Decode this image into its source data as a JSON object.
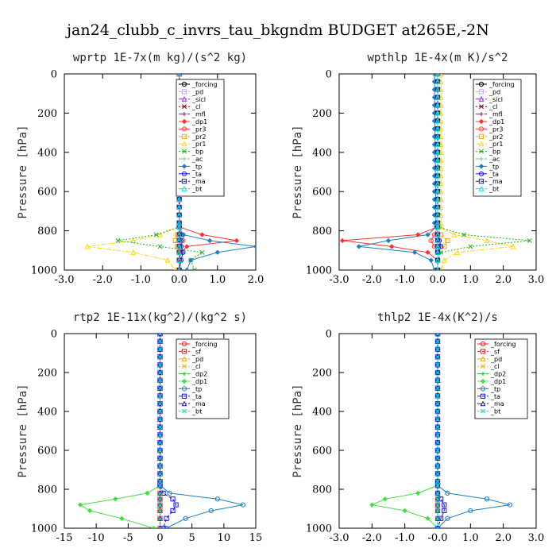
{
  "title": "jan24_clubb_c_invrs_tau_bkgndm  BUDGET at265E,-2N",
  "chart_data": [
    {
      "type": "line",
      "title": "wprtp  1E-7x(m kg)/(s^2 kg)",
      "ylabel": "Pressure [hPa]",
      "xlim": [
        -3.0,
        2.0
      ],
      "ylim": [
        1000,
        0
      ],
      "xticks": [
        "-3.0",
        "-2.0",
        "-1.0",
        "0.0",
        "1.0",
        "2.0"
      ],
      "yticks": [
        "0",
        "200",
        "400",
        "600",
        "800",
        "1000"
      ],
      "legend_position": "top-right",
      "y": [
        0,
        780,
        820,
        850,
        880,
        910,
        950,
        1000
      ],
      "series": [
        {
          "name": "_forcing",
          "color": "#000000",
          "values": [
            0,
            0,
            0,
            0,
            0,
            0,
            0,
            0
          ]
        },
        {
          "name": "_pd",
          "color": "#c8a0ff",
          "values": [
            0,
            0,
            0,
            0,
            0,
            0,
            0,
            0
          ]
        },
        {
          "name": "_sicl",
          "color": "#a020f0",
          "values": [
            0,
            0,
            0,
            0,
            0,
            0,
            0,
            0
          ]
        },
        {
          "name": "_cl",
          "color": "#800000",
          "values": [
            0,
            0,
            0,
            0,
            0,
            0,
            0,
            0
          ]
        },
        {
          "name": "_mfl",
          "color": "#c00060",
          "values": [
            0,
            0,
            0,
            0,
            0,
            0,
            0,
            0
          ]
        },
        {
          "name": "_dp1",
          "color": "#ff3030",
          "values": [
            0,
            0,
            0.6,
            1.5,
            0.2,
            0.05,
            0,
            0
          ]
        },
        {
          "name": "_pr3",
          "color": "#ff4040",
          "values": [
            0,
            0,
            0.1,
            0.1,
            0.05,
            0,
            0,
            0
          ]
        },
        {
          "name": "_pr2",
          "color": "#ffa500",
          "values": [
            0,
            0,
            -0.05,
            -0.1,
            -0.05,
            0,
            0,
            0
          ]
        },
        {
          "name": "_pr1",
          "color": "#ffd700",
          "values": [
            0,
            0,
            -0.5,
            -1.2,
            -2.4,
            -1.2,
            -0.3,
            -0.1
          ]
        },
        {
          "name": "_bp",
          "color": "#20b020",
          "values": [
            0,
            0,
            -0.6,
            -1.6,
            -0.5,
            0.6,
            0.3,
            0.4
          ]
        },
        {
          "name": "_ac",
          "color": "#80c080",
          "values": [
            0,
            0,
            0.05,
            0.1,
            0.05,
            0.1,
            0.05,
            0
          ]
        },
        {
          "name": "_tp",
          "color": "#1e7fc0",
          "values": [
            0,
            0,
            0.1,
            0.8,
            2.0,
            1.0,
            0.3,
            0.2
          ]
        },
        {
          "name": "_ta",
          "color": "#1010ff",
          "values": [
            0,
            0,
            0,
            0.05,
            0.05,
            0.1,
            0.05,
            0
          ]
        },
        {
          "name": "_ma",
          "color": "#202080",
          "values": [
            0,
            0,
            0,
            0,
            0,
            0,
            0,
            0
          ]
        },
        {
          "name": "_bt",
          "color": "#00e0e0",
          "values": [
            0,
            0,
            0,
            0,
            0,
            0,
            0,
            0
          ]
        }
      ]
    },
    {
      "type": "line",
      "title": "wpthlp  1E-4x(m K)/s^2",
      "ylabel": "Pressure [hPa]",
      "xlim": [
        -3.0,
        3.0
      ],
      "ylim": [
        1000,
        0
      ],
      "xticks": [
        "-3.0",
        "-2.0",
        "-1.0",
        "0.0",
        "1.0",
        "2.0",
        "3.0"
      ],
      "yticks": [
        "0",
        "200",
        "400",
        "600",
        "800",
        "1000"
      ],
      "legend_position": "top-right",
      "y": [
        0,
        780,
        820,
        850,
        880,
        910,
        950,
        1000
      ],
      "series": [
        {
          "name": "_forcing",
          "color": "#000000",
          "values": [
            0,
            0,
            0,
            0,
            0,
            0,
            0,
            0
          ]
        },
        {
          "name": "_pd",
          "color": "#c8a0ff",
          "values": [
            0,
            0,
            0,
            0,
            0,
            0,
            0,
            0
          ]
        },
        {
          "name": "_sicl",
          "color": "#a020f0",
          "values": [
            0,
            0,
            0,
            0,
            0,
            0,
            0,
            0
          ]
        },
        {
          "name": "_cl",
          "color": "#800000",
          "values": [
            0,
            0,
            0,
            0,
            0,
            0,
            0,
            0
          ]
        },
        {
          "name": "_mfl",
          "color": "#c00060",
          "values": [
            0,
            0,
            0,
            0,
            0,
            0,
            0,
            0
          ]
        },
        {
          "name": "_dp1",
          "color": "#ff3030",
          "values": [
            0,
            0,
            -0.6,
            -2.9,
            -1.4,
            -0.3,
            0,
            0
          ]
        },
        {
          "name": "_pr3",
          "color": "#ff4040",
          "values": [
            0,
            0,
            -0.1,
            -0.2,
            -0.1,
            0,
            0,
            0
          ]
        },
        {
          "name": "_pr2",
          "color": "#ffa500",
          "values": [
            0,
            0,
            0.1,
            0.3,
            0.2,
            0,
            0,
            0
          ]
        },
        {
          "name": "_pr1",
          "color": "#ffd700",
          "values": [
            0.1,
            0.1,
            0.5,
            1.5,
            2.3,
            0.6,
            0.2,
            0.1
          ]
        },
        {
          "name": "_bp",
          "color": "#20b020",
          "values": [
            0,
            0,
            0.8,
            2.8,
            1.0,
            0.1,
            0,
            0
          ]
        },
        {
          "name": "_ac",
          "color": "#80c080",
          "values": [
            0,
            0,
            0,
            0.05,
            0.05,
            0,
            0,
            0
          ]
        },
        {
          "name": "_tp",
          "color": "#1e7fc0",
          "values": [
            -0.1,
            -0.05,
            -0.3,
            -1.5,
            -2.4,
            -0.7,
            -0.2,
            -0.1
          ]
        },
        {
          "name": "_ta",
          "color": "#1010ff",
          "values": [
            0,
            0,
            0,
            0.05,
            0.1,
            0,
            0,
            0
          ]
        },
        {
          "name": "_ma",
          "color": "#202080",
          "values": [
            0,
            0,
            0,
            0,
            0,
            0,
            0,
            0
          ]
        },
        {
          "name": "_bt",
          "color": "#00e0e0",
          "values": [
            0,
            0,
            0,
            0,
            0,
            0,
            0,
            0
          ]
        }
      ]
    },
    {
      "type": "line",
      "title": "rtp2  1E-11x(kg^2)/(kg^2 s)",
      "ylabel": "Pressure [hPa]",
      "xlim": [
        -15,
        15
      ],
      "ylim": [
        1000,
        0
      ],
      "xticks": [
        "-15",
        "-10",
        "-5",
        "0",
        "5",
        "10",
        "15"
      ],
      "yticks": [
        "0",
        "200",
        "400",
        "600",
        "800",
        "1000"
      ],
      "legend_position": "top-right",
      "y": [
        0,
        780,
        820,
        850,
        880,
        910,
        950,
        1000
      ],
      "series": [
        {
          "name": "_forcing",
          "color": "#ff2020",
          "values": [
            0,
            0,
            0,
            0,
            0,
            0,
            0,
            0
          ]
        },
        {
          "name": "_sf",
          "color": "#e02020",
          "values": [
            0,
            0,
            0,
            0,
            0,
            0,
            0,
            0
          ]
        },
        {
          "name": "_pd",
          "color": "#ffa500",
          "values": [
            0,
            0,
            0,
            0,
            0,
            0,
            0,
            0
          ]
        },
        {
          "name": "_cl",
          "color": "#e0c000",
          "values": [
            0,
            0,
            0,
            0,
            0,
            0,
            0,
            0
          ]
        },
        {
          "name": "_dp2",
          "color": "#20b020",
          "values": [
            0,
            0,
            0,
            0,
            0,
            0,
            0,
            0
          ]
        },
        {
          "name": "_dp1",
          "color": "#40e040",
          "values": [
            0,
            0,
            -2.0,
            -7.0,
            -12.5,
            -11.0,
            -6.0,
            -1.0
          ]
        },
        {
          "name": "_tp",
          "color": "#1e7fc0",
          "values": [
            0,
            0,
            1.5,
            9.0,
            13.0,
            8.0,
            4.0,
            1.0
          ]
        },
        {
          "name": "_ta",
          "color": "#1010ff",
          "values": [
            0,
            0,
            0.5,
            2.0,
            2.5,
            2.0,
            1.0,
            0.5
          ]
        },
        {
          "name": "_ma",
          "color": "#202080",
          "values": [
            0,
            0,
            0,
            0,
            0,
            0,
            0,
            0
          ]
        },
        {
          "name": "_bt",
          "color": "#00e0e0",
          "values": [
            0,
            0,
            0,
            0,
            0,
            0,
            0,
            0
          ]
        }
      ]
    },
    {
      "type": "line",
      "title": "thlp2  1E-4x(K^2)/s",
      "ylabel": "Pressure [hPa]",
      "xlim": [
        -3.0,
        3.0
      ],
      "ylim": [
        1000,
        0
      ],
      "xticks": [
        "-3.0",
        "-2.0",
        "-1.0",
        "-0.0",
        "1.0",
        "2.0",
        "3.0"
      ],
      "yticks": [
        "0",
        "200",
        "400",
        "600",
        "800",
        "1000"
      ],
      "legend_position": "top-right",
      "y": [
        0,
        780,
        820,
        850,
        880,
        910,
        950,
        1000
      ],
      "series": [
        {
          "name": "_forcing",
          "color": "#ff2020",
          "values": [
            0,
            0,
            0,
            0,
            0,
            0,
            0,
            0
          ]
        },
        {
          "name": "_sf",
          "color": "#e02020",
          "values": [
            0,
            0,
            0,
            0,
            0,
            0,
            0,
            0
          ]
        },
        {
          "name": "_pd",
          "color": "#ffa500",
          "values": [
            0,
            0,
            0,
            0,
            0,
            0,
            0,
            0
          ]
        },
        {
          "name": "_cl",
          "color": "#e0c000",
          "values": [
            0,
            0,
            0,
            0,
            0,
            0,
            0,
            0
          ]
        },
        {
          "name": "_dp2",
          "color": "#20b020",
          "values": [
            0,
            0,
            0,
            0,
            0,
            0,
            0,
            0
          ]
        },
        {
          "name": "_dp1",
          "color": "#40e040",
          "values": [
            0,
            0,
            -0.6,
            -1.6,
            -2.0,
            -1.0,
            -0.3,
            0
          ]
        },
        {
          "name": "_tp",
          "color": "#1e7fc0",
          "values": [
            0,
            0,
            0.3,
            1.5,
            2.2,
            1.0,
            0.3,
            0
          ]
        },
        {
          "name": "_ta",
          "color": "#1010ff",
          "values": [
            0,
            0,
            0,
            0.1,
            0.2,
            0.2,
            0.1,
            0
          ]
        },
        {
          "name": "_ma",
          "color": "#202080",
          "values": [
            0,
            0,
            0,
            0,
            0,
            0,
            0,
            0
          ]
        },
        {
          "name": "_bt",
          "color": "#00e0e0",
          "values": [
            0,
            0,
            0,
            0,
            0,
            0,
            0,
            0
          ]
        }
      ]
    }
  ]
}
